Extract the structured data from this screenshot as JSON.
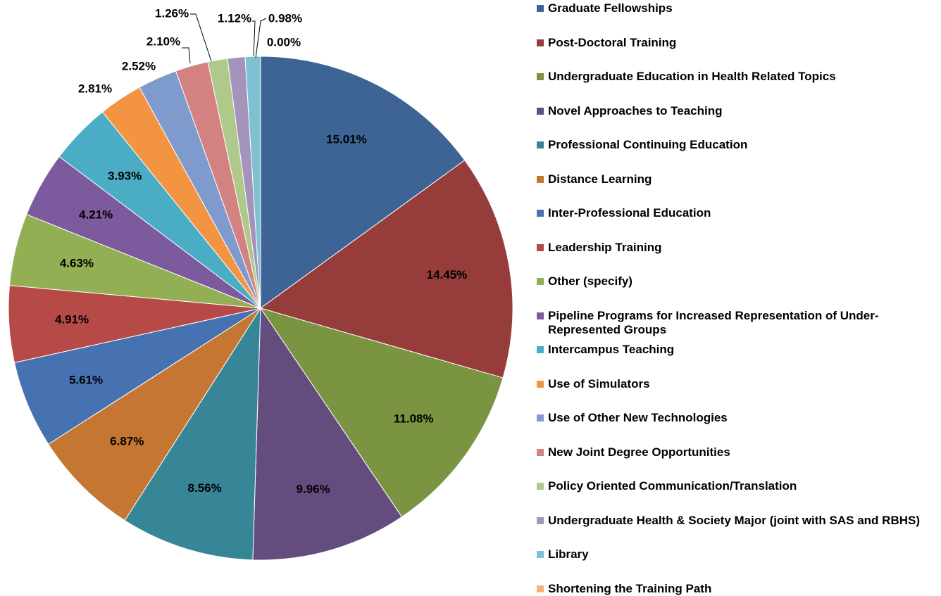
{
  "chart_data": {
    "type": "pie",
    "categories": [
      "Graduate Fellowships",
      "Post-Doctoral Training",
      "Undergraduate Education in Health Related Topics",
      "Novel Approaches to Teaching",
      "Professional Continuing Education",
      "Distance Learning",
      "Inter-Professional Education",
      "Leadership Training",
      "Other (specify)",
      "Pipeline Programs for Increased Representation of Under-Represented Groups",
      "Intercampus Teaching",
      "Use of Simulators",
      "Use of Other New Technologies",
      "New Joint Degree Opportunities",
      "Policy Oriented Communication/Translation",
      "Undergraduate Health & Society Major (joint with SAS and RBHS)",
      "Library",
      "Shortening the Training Path"
    ],
    "values": [
      15.01,
      14.45,
      11.08,
      9.96,
      8.56,
      6.87,
      5.61,
      4.91,
      4.63,
      4.21,
      3.93,
      2.81,
      2.52,
      2.1,
      1.26,
      1.12,
      0.98,
      0.0
    ],
    "value_labels": [
      "15.01%",
      "14.45%",
      "11.08%",
      "9.96%",
      "8.56%",
      "6.87%",
      "5.61%",
      "4.91%",
      "4.63%",
      "4.21%",
      "3.93%",
      "2.81%",
      "2.52%",
      "2.10%",
      "1.26%",
      "1.12%",
      "0.98%",
      "0.00%"
    ],
    "colors": [
      "#3d6495",
      "#963c3a",
      "#7a9441",
      "#644c7e",
      "#378697",
      "#c57632",
      "#4672b1",
      "#b64a47",
      "#92af53",
      "#7b5b9d",
      "#4aacc5",
      "#f39442",
      "#7f9bcd",
      "#d38181",
      "#aec98a",
      "#a494bc",
      "#7fc0d3",
      "#f7b07d"
    ],
    "legend": "right"
  }
}
